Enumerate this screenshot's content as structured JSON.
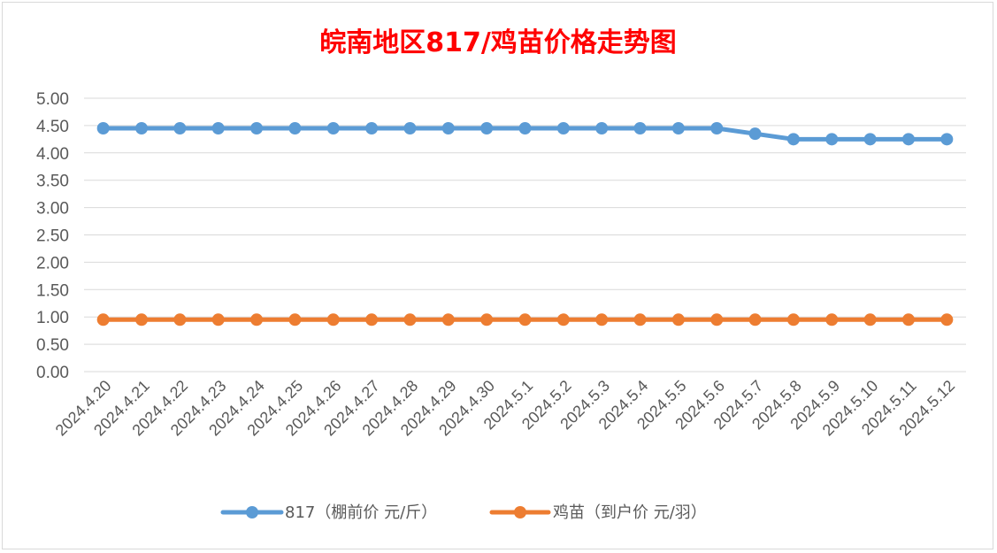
{
  "chart_data": {
    "type": "line",
    "title": "皖南地区817/鸡苗价格走势图",
    "categories": [
      "2024.4.20",
      "2024.4.21",
      "2024.4.22",
      "2024.4.23",
      "2024.4.24",
      "2024.4.25",
      "2024.4.26",
      "2024.4.27",
      "2024.4.28",
      "2024.4.29",
      "2024.4.30",
      "2024.5.1",
      "2024.5.2",
      "2024.5.3",
      "2024.5.4",
      "2024.5.5",
      "2024.5.6",
      "2024.5.7",
      "2024.5.8",
      "2024.5.9",
      "2024.5.10",
      "2024.5.11",
      "2024.5.12"
    ],
    "series": [
      {
        "name": "817（棚前价 元/斤）",
        "color": "#5b9bd5",
        "values": [
          4.45,
          4.45,
          4.45,
          4.45,
          4.45,
          4.45,
          4.45,
          4.45,
          4.45,
          4.45,
          4.45,
          4.45,
          4.45,
          4.45,
          4.45,
          4.45,
          4.45,
          4.35,
          4.25,
          4.25,
          4.25,
          4.25,
          4.25
        ]
      },
      {
        "name": "鸡苗（到户价 元/羽）",
        "color": "#ed7d31",
        "values": [
          0.95,
          0.95,
          0.95,
          0.95,
          0.95,
          0.95,
          0.95,
          0.95,
          0.95,
          0.95,
          0.95,
          0.95,
          0.95,
          0.95,
          0.95,
          0.95,
          0.95,
          0.95,
          0.95,
          0.95,
          0.95,
          0.95,
          0.95
        ]
      }
    ],
    "y_ticks": [
      "0.00",
      "0.50",
      "1.00",
      "1.50",
      "2.00",
      "2.50",
      "3.00",
      "3.50",
      "4.00",
      "4.50",
      "5.00"
    ],
    "ylim": [
      0,
      5
    ],
    "grid": true,
    "legend_position": "bottom"
  }
}
